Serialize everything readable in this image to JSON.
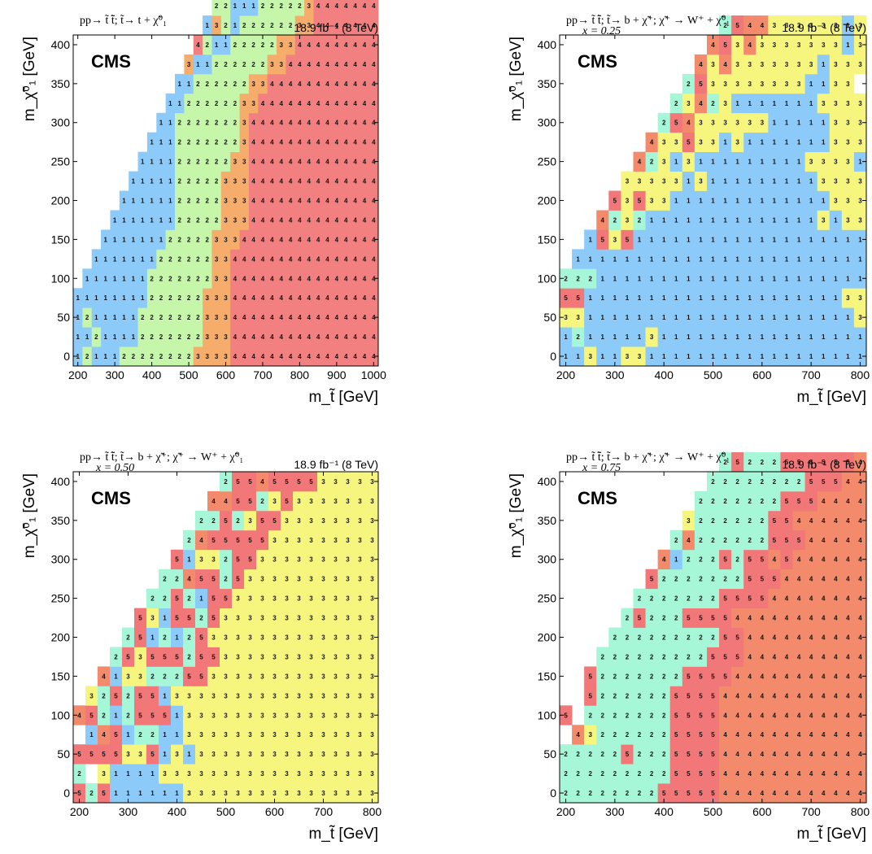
{
  "palette": {
    "1": "#8ccaf9",
    "2": "#a6f7d8",
    "3": "#f6f57e",
    "4": "#f38a6b",
    "5": "#f17778"
  },
  "palette_tl": {
    "1": "#8ccaf9",
    "2": "#c5f6a9",
    "3": "#f6ad6b",
    "4": "#f38080"
  },
  "chart_data": [
    {
      "type": "heatmap",
      "panel": "top-left",
      "title": "pp→ t̃ t̃̄; t̃→ t + χ̃⁰₁",
      "subtitle": "",
      "lumi": "18.9 fb⁻¹ (8 TeV)",
      "logo": "CMS",
      "xlabel": "m_t̃ [GeV]",
      "ylabel": "m_χ̃⁰₁ [GeV]",
      "xlim": [
        187.5,
        1012.5
      ],
      "ylim": [
        -12.5,
        412.5
      ],
      "xstep": 25,
      "ystep": 25,
      "xticks": [
        200,
        300,
        400,
        500,
        600,
        700,
        800,
        900,
        1000
      ],
      "yticks": [
        0,
        50,
        100,
        150,
        200,
        250,
        300,
        350,
        400
      ],
      "x0": 200,
      "y0": 0,
      "color_scheme": "tl",
      "rows": [
        "12111222222223333444444444444444444",
        "11211112222222333444444444444444444",
        "12111112222222333444444444444444444",
        "11111111222222333444444444444444444",
        "-1111111222222233444444444444444444",
        "--111111122222233444444444444444444",
        "---111111122222333444444444444444444",
        "----111111122222333444444444444444444",
        "-----11111122222333444444444444444444",
        "------1111122222333444444444444444444",
        "-------111122222233444444444444444444",
        "--------11122222223444444444444444444",
        "---------1122222223444444444444444444",
        "----------112222223344444444444444444",
        "-----------11222222334444444444444444",
        "------------3112222223344444444444444",
        "-------------4211222223344444444444444",
        "--------------1321222222334444444444444",
        "---------------221112222234444444444444",
        "----------------11111222223444444444444",
        "-----------------112112222234444444444444"
      ]
    },
    {
      "type": "heatmap",
      "panel": "top-right",
      "title": "pp→ t̃ t̃̄; t̃→ b + χ̃⁺; χ̃⁺ → W⁺ + χ̃⁰₁",
      "subtitle": "x = 0.25",
      "lumi": "18.9 fb⁻¹ (8 TeV)",
      "logo": "CMS",
      "xlabel": "m_t̃ [GeV]",
      "ylabel": "m_χ̃⁰₁ [GeV]",
      "xlim": [
        187.5,
        812.5
      ],
      "ylim": [
        -12.5,
        412.5
      ],
      "xstep": 25,
      "ystep": 25,
      "xticks": [
        200,
        300,
        400,
        500,
        600,
        700,
        800
      ],
      "yticks": [
        0,
        50,
        100,
        150,
        200,
        250,
        300,
        350,
        400
      ],
      "x0": 200,
      "y0": 0,
      "color_scheme": "std",
      "rows": [
        "1131133111111111111111111",
        "1211111311111111111111111",
        "3311111111111111111111113",
        "5511111111111111111111133",
        "2221111111111111111111111",
        "-1111111111111111111111113",
        "--153511111111111111111113",
        "---423211111111111111313333",
        "----5353311111111111113333",
        "-----333331311111111133333",
        "------4231311111111133331",
        "-------4335331311111113333",
        "--------2543333331111133333",
        "---------2342311111113333",
        "----------25333333331133",
        "-----------434333333313333",
        "------------4534333333313333",
        "-------------254433333313333"
      ]
    },
    {
      "type": "heatmap",
      "panel": "bottom-left",
      "title": "pp→ t̃ t̃̄; t̃→ b + χ̃⁺; χ̃⁺ → W⁺ + χ̃⁰₁",
      "subtitle": "x = 0.50",
      "lumi": "18.9 fb⁻¹ (8 TeV)",
      "logo": "CMS",
      "xlabel": "m_t̃ [GeV]",
      "ylabel": "m_χ̃⁰₁ [GeV]",
      "xlim": [
        187.5,
        812.5
      ],
      "ylim": [
        -12.5,
        412.5
      ],
      "xstep": 25,
      "ystep": 25,
      "xticks": [
        200,
        300,
        400,
        500,
        600,
        700,
        800
      ],
      "yticks": [
        0,
        50,
        100,
        150,
        200,
        250,
        300,
        350,
        400
      ],
      "x0": 200,
      "y0": 0,
      "color_scheme": "std",
      "rows": [
        "5251111113333333333333333",
        "2-31111333333333333333333",
        "5555335131333333333333333",
        "-1451221133333333333333333",
        "45212555133333333333333333",
        "-3252551333333333333333333",
        "--4133222553333333333333333",
        "---253555255333333333333333",
        "----25121253333333333333333",
        "-----53155253333333333333333",
        "------2252155333333333333333",
        "-------22455253333333333333",
        "--------51332553333333333333",
        "---------2455555333333333333",
        "----------22523553333333333",
        "-----------44552353333333333",
        "------------255455553333333"
      ]
    },
    {
      "type": "heatmap",
      "panel": "bottom-right",
      "title": "pp→ t̃ t̃̄; t̃→ b + χ̃⁺; χ̃⁺ → W⁺ + χ̃⁰₁",
      "subtitle": "x = 0.75",
      "lumi": "18.9 fb⁻¹ (8 TeV)",
      "logo": "CMS",
      "xlabel": "m_t̃ [GeV]",
      "ylabel": "m_χ̃⁰₁ [GeV]",
      "xlim": [
        187.5,
        812.5
      ],
      "ylim": [
        -12.5,
        412.5
      ],
      "xstep": 25,
      "ystep": 25,
      "xticks": [
        200,
        300,
        400,
        500,
        600,
        700,
        800
      ],
      "yticks": [
        0,
        50,
        100,
        150,
        200,
        250,
        300,
        350,
        400
      ],
      "x0": 200,
      "y0": 0,
      "color_scheme": "std",
      "rows": [
        "2222222255555444444444444",
        "2222222225555444444444444",
        "2222252225555444444444444",
        "-432222225555444444444444",
        "5-222222255554444444444444",
        "--5222222555544444444444444",
        "--52222222555544444444444444",
        "---2222222225554444444444444",
        "----22222222255444444444444",
        "-----2522255554444444444444",
        "------222222255554444444444",
        "-------5222222255544444444",
        "--------4122252554544444444",
        "---------24222222555444444",
        "----------322222255444444",
        "-----------22222225554444",
        "------------2222222255544444",
        "-------------2522255555544444"
      ]
    }
  ]
}
